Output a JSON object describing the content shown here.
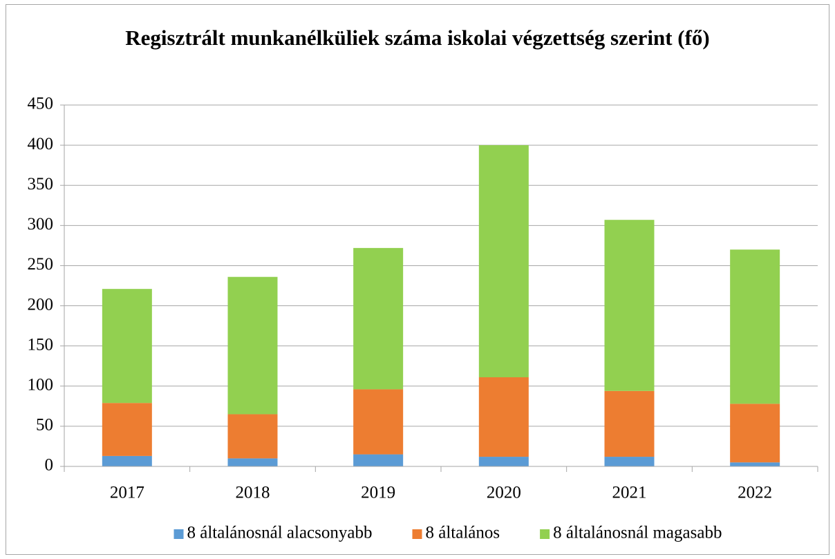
{
  "chart_data": {
    "type": "stacked_bar",
    "title": "Regisztrált munkanélküliek száma iskolai végzettség szerint (fő)",
    "categories": [
      "2017",
      "2018",
      "2019",
      "2020",
      "2021",
      "2022"
    ],
    "series": [
      {
        "name": "8 általánosnál alacsonyabb",
        "color": "#5b9bd5",
        "values": [
          13,
          10,
          15,
          12,
          12,
          5
        ]
      },
      {
        "name": "8 általános",
        "color": "#ed7d31",
        "values": [
          66,
          55,
          81,
          99,
          82,
          73
        ]
      },
      {
        "name": "8 általánosnál magasabb",
        "color": "#92d050",
        "values": [
          142,
          171,
          176,
          289,
          213,
          192
        ]
      }
    ],
    "ylim": [
      0,
      450
    ],
    "yticks": [
      0,
      50,
      100,
      150,
      200,
      250,
      300,
      350,
      400,
      450
    ],
    "grid": true,
    "legend": "bottom"
  }
}
